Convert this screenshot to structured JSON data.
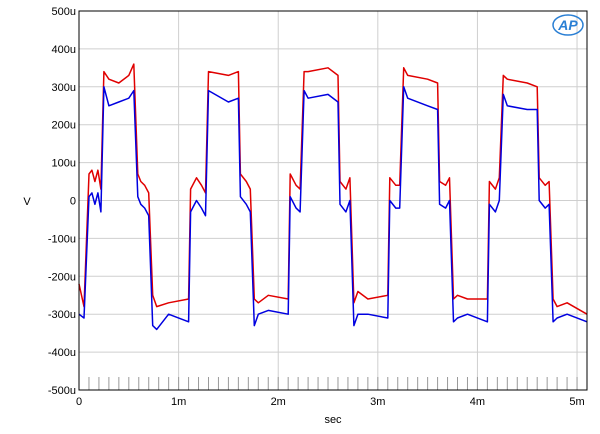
{
  "chart_data": {
    "type": "line",
    "xlabel": "sec",
    "ylabel": "V",
    "xlim": [
      0,
      0.0051
    ],
    "ylim": [
      -0.0005,
      0.0005
    ],
    "grid": true,
    "logo": "AP",
    "x_ticks": [
      {
        "value": 0,
        "label": "0"
      },
      {
        "value": 0.001,
        "label": "1m"
      },
      {
        "value": 0.002,
        "label": "2m"
      },
      {
        "value": 0.003,
        "label": "3m"
      },
      {
        "value": 0.004,
        "label": "4m"
      },
      {
        "value": 0.005,
        "label": "5m"
      }
    ],
    "y_ticks": [
      {
        "value": 0.0005,
        "label": "500u"
      },
      {
        "value": 0.0004,
        "label": "400u"
      },
      {
        "value": 0.0003,
        "label": "300u"
      },
      {
        "value": 0.0002,
        "label": "200u"
      },
      {
        "value": 0.0001,
        "label": "100u"
      },
      {
        "value": 0,
        "label": "0"
      },
      {
        "value": -0.0001,
        "label": "-100u"
      },
      {
        "value": -0.0002,
        "label": "-200u"
      },
      {
        "value": -0.0003,
        "label": "-300u"
      },
      {
        "value": -0.0004,
        "label": "-400u"
      },
      {
        "value": -0.0005,
        "label": "-500u"
      }
    ],
    "series": [
      {
        "color": "#e00000",
        "x": [
          0,
          5e-05,
          0.0001,
          0.00013,
          0.00016,
          0.00019,
          0.00022,
          0.00025,
          0.0003,
          0.0004,
          0.0005,
          0.00055,
          0.00059,
          0.00062,
          0.00066,
          0.0007,
          0.00074,
          0.00078,
          0.0009,
          0.0011,
          0.00112,
          0.00118,
          0.00123,
          0.00127,
          0.0013,
          0.0015,
          0.0016,
          0.00162,
          0.00168,
          0.00172,
          0.00176,
          0.0018,
          0.0019,
          0.0021,
          0.00212,
          0.00218,
          0.00222,
          0.00226,
          0.0023,
          0.0025,
          0.0026,
          0.00262,
          0.00268,
          0.00272,
          0.00276,
          0.0028,
          0.0029,
          0.0031,
          0.00312,
          0.00318,
          0.00322,
          0.00326,
          0.0033,
          0.0035,
          0.0036,
          0.00362,
          0.00368,
          0.00372,
          0.00376,
          0.0038,
          0.0039,
          0.0041,
          0.00412,
          0.00418,
          0.00422,
          0.00426,
          0.0043,
          0.0045,
          0.0046,
          0.00462,
          0.00468,
          0.00472,
          0.00476,
          0.0048,
          0.0049,
          0.0051
        ],
        "y": [
          -0.00022,
          -0.00028,
          7e-05,
          8e-05,
          5e-05,
          8e-05,
          3e-05,
          0.00034,
          0.00032,
          0.00031,
          0.00033,
          0.00036,
          7e-05,
          5e-05,
          4e-05,
          2e-05,
          -0.00025,
          -0.00028,
          -0.00027,
          -0.00026,
          3e-05,
          6e-05,
          4e-05,
          2e-05,
          0.00034,
          0.00033,
          0.00034,
          7e-05,
          5e-05,
          3e-05,
          -0.00026,
          -0.00027,
          -0.00025,
          -0.00026,
          7e-05,
          4e-05,
          3e-05,
          0.00034,
          0.00034,
          0.00035,
          0.00033,
          5e-05,
          3e-05,
          6e-05,
          -0.00027,
          -0.00024,
          -0.00026,
          -0.00025,
          6e-05,
          4e-05,
          4e-05,
          0.00035,
          0.00033,
          0.00032,
          0.00031,
          5e-05,
          4e-05,
          6e-05,
          -0.00026,
          -0.00025,
          -0.00026,
          -0.00026,
          5e-05,
          3e-05,
          6e-05,
          0.00033,
          0.00032,
          0.00031,
          0.0003,
          6e-05,
          4e-05,
          5e-05,
          -0.00026,
          -0.00028,
          -0.00027,
          -0.0003
        ]
      },
      {
        "color": "#0000e0",
        "x": [
          0,
          5e-05,
          0.0001,
          0.00013,
          0.00016,
          0.00019,
          0.00022,
          0.00025,
          0.0003,
          0.0004,
          0.0005,
          0.00055,
          0.00059,
          0.00062,
          0.00066,
          0.0007,
          0.00074,
          0.00078,
          0.0009,
          0.0011,
          0.00112,
          0.00118,
          0.00123,
          0.00127,
          0.0013,
          0.0015,
          0.0016,
          0.00162,
          0.00168,
          0.00172,
          0.00176,
          0.0018,
          0.0019,
          0.0021,
          0.00212,
          0.00218,
          0.00222,
          0.00226,
          0.0023,
          0.0025,
          0.0026,
          0.00262,
          0.00268,
          0.00272,
          0.00276,
          0.0028,
          0.0029,
          0.0031,
          0.00312,
          0.00318,
          0.00322,
          0.00326,
          0.0033,
          0.0035,
          0.0036,
          0.00362,
          0.00368,
          0.00372,
          0.00376,
          0.0038,
          0.0039,
          0.0041,
          0.00412,
          0.00418,
          0.00422,
          0.00426,
          0.0043,
          0.0045,
          0.0046,
          0.00462,
          0.00468,
          0.00472,
          0.00476,
          0.0048,
          0.0049,
          0.0051
        ],
        "y": [
          -0.0003,
          -0.00031,
          1e-05,
          2e-05,
          -1e-05,
          2e-05,
          -3e-05,
          0.0003,
          0.00025,
          0.00026,
          0.00027,
          0.00029,
          1e-05,
          -1e-05,
          -2e-05,
          -4e-05,
          -0.00033,
          -0.00034,
          -0.0003,
          -0.00032,
          -3e-05,
          0.0,
          -2e-05,
          -4e-05,
          0.00029,
          0.00026,
          0.00027,
          1e-05,
          -1e-05,
          -3e-05,
          -0.00033,
          -0.0003,
          -0.00029,
          -0.0003,
          1e-05,
          -2e-05,
          -3e-05,
          0.00029,
          0.00027,
          0.00028,
          0.00026,
          -1e-05,
          -3e-05,
          0.0,
          -0.00033,
          -0.0003,
          -0.0003,
          -0.00031,
          0.0,
          -2e-05,
          -2e-05,
          0.0003,
          0.00027,
          0.00025,
          0.00024,
          -1e-05,
          -2e-05,
          0.0,
          -0.00032,
          -0.00031,
          -0.0003,
          -0.00032,
          -1e-05,
          -3e-05,
          0.0,
          0.00028,
          0.00025,
          0.00024,
          0.00024,
          0.0,
          -2e-05,
          -1e-05,
          -0.00032,
          -0.00031,
          -0.0003,
          -0.00032
        ]
      }
    ]
  }
}
